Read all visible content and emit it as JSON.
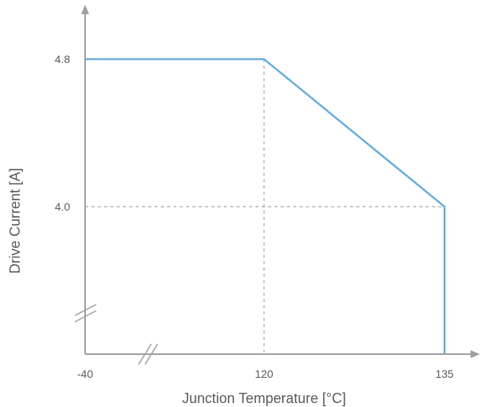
{
  "chart_data": {
    "type": "line",
    "xlabel": "Junction Temperature [°C]",
    "ylabel": "Drive Current [A]",
    "x_ticks": [
      "-40",
      "120",
      "135"
    ],
    "y_ticks": [
      "4.8",
      "4.0"
    ],
    "x_axis_break": true,
    "y_axis_break": true,
    "reference_lines": [
      {
        "orientation": "vertical",
        "x": 120,
        "style": "dashed"
      },
      {
        "orientation": "horizontal",
        "y": 4.0,
        "style": "dashed"
      }
    ],
    "series": [
      {
        "color": "#6aaedc",
        "x": [
          -40,
          120,
          135,
          135
        ],
        "y": [
          4.8,
          4.8,
          4.0,
          null
        ]
      }
    ],
    "grid": false,
    "legend": "none"
  }
}
